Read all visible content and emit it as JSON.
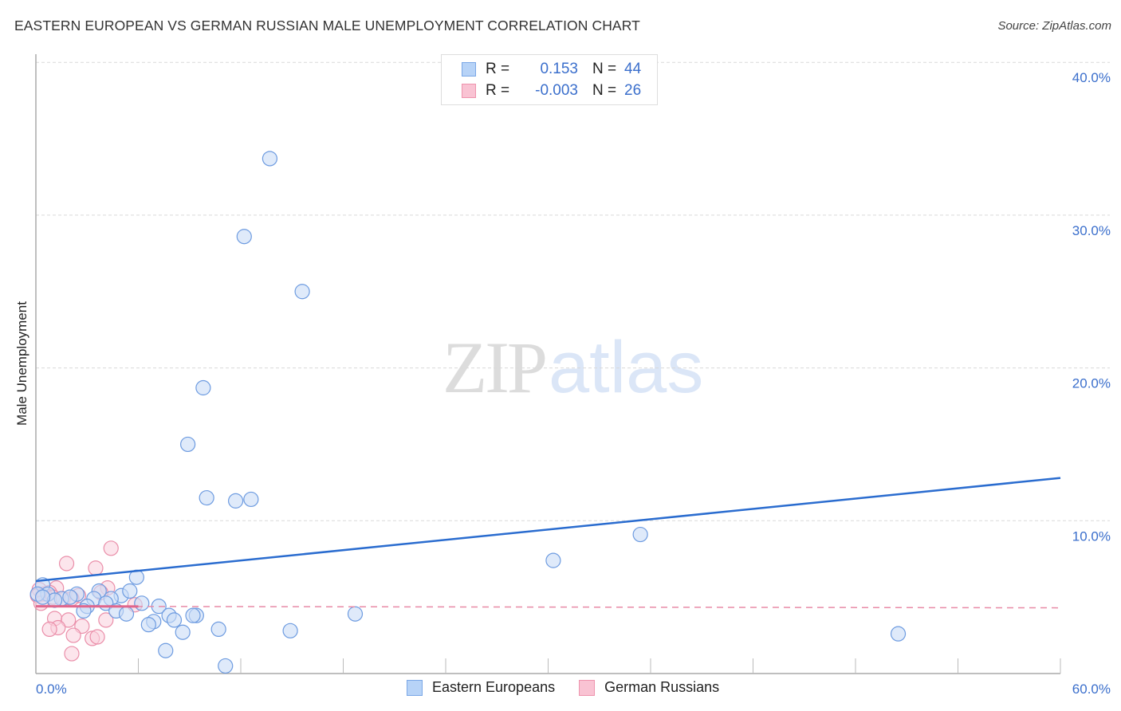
{
  "header": {
    "title": "EASTERN EUROPEAN VS GERMAN RUSSIAN MALE UNEMPLOYMENT CORRELATION CHART",
    "source": "Source: ZipAtlas.com"
  },
  "watermark": {
    "zip": "ZIP",
    "atlas": "atlas"
  },
  "legend": {
    "rows": [
      {
        "r_label": "R =",
        "r_value": "0.153",
        "n_label": "N =",
        "n_value": "44",
        "color": "#b7d3f7",
        "border": "#7aa7e6"
      },
      {
        "r_label": "R =",
        "r_value": "-0.003",
        "n_label": "N =",
        "n_value": "26",
        "color": "#f9c3d3",
        "border": "#ee93ad"
      }
    ]
  },
  "bottom_legend": {
    "items": [
      {
        "label": "Eastern Europeans",
        "color": "#b7d3f7",
        "border": "#7aa7e6"
      },
      {
        "label": "German Russians",
        "color": "#f9c3d3",
        "border": "#ee93ad"
      }
    ]
  },
  "colors": {
    "blue_fill": "#c9dcf6",
    "blue_stroke": "#6d9be0",
    "blue_line": "#2a6ccf",
    "pink_fill": "#f9cfdc",
    "pink_stroke": "#ea8ea9",
    "pink_line": "#e88aa6",
    "tick_text": "#3b6fcc"
  },
  "chart_data": {
    "type": "scatter",
    "title": "EASTERN EUROPEAN VS GERMAN RUSSIAN MALE UNEMPLOYMENT CORRELATION CHART",
    "xlabel": "",
    "ylabel": "Male Unemployment",
    "xlim": [
      0,
      60
    ],
    "ylim": [
      0,
      42
    ],
    "x_tick_labels": [
      "0.0%",
      "60.0%"
    ],
    "y_ticks": [
      10,
      20,
      30,
      40
    ],
    "y_tick_labels": [
      "10.0%",
      "20.0%",
      "30.0%",
      "40.0%"
    ],
    "grid": "horizontal dashed",
    "legend_position": "top-center and bottom",
    "series": [
      {
        "name": "Eastern Europeans",
        "R": 0.153,
        "N": 44,
        "trend": {
          "x": [
            0,
            60
          ],
          "y": [
            6.05,
            12.8
          ]
        },
        "points": [
          [
            13.7,
            33.7
          ],
          [
            12.2,
            28.6
          ],
          [
            15.6,
            25.0
          ],
          [
            9.8,
            18.7
          ],
          [
            8.9,
            15.0
          ],
          [
            10.0,
            11.5
          ],
          [
            11.7,
            11.3
          ],
          [
            12.6,
            11.4
          ],
          [
            35.4,
            9.1
          ],
          [
            30.3,
            7.4
          ],
          [
            5.9,
            6.3
          ],
          [
            0.4,
            5.8
          ],
          [
            5.0,
            5.1
          ],
          [
            5.5,
            5.4
          ],
          [
            3.7,
            5.4
          ],
          [
            2.4,
            5.2
          ],
          [
            0.7,
            5.2
          ],
          [
            4.4,
            4.9
          ],
          [
            3.4,
            4.9
          ],
          [
            1.5,
            4.9
          ],
          [
            1.1,
            4.8
          ],
          [
            3.0,
            4.4
          ],
          [
            4.1,
            4.6
          ],
          [
            6.2,
            4.6
          ],
          [
            7.2,
            4.4
          ],
          [
            4.7,
            4.1
          ],
          [
            2.8,
            4.1
          ],
          [
            5.3,
            3.9
          ],
          [
            7.8,
            3.8
          ],
          [
            9.4,
            3.8
          ],
          [
            9.2,
            3.8
          ],
          [
            18.7,
            3.9
          ],
          [
            8.1,
            3.5
          ],
          [
            6.9,
            3.4
          ],
          [
            6.6,
            3.2
          ],
          [
            8.6,
            2.7
          ],
          [
            10.7,
            2.9
          ],
          [
            14.9,
            2.8
          ],
          [
            50.5,
            2.6
          ],
          [
            7.6,
            1.5
          ],
          [
            11.1,
            0.5
          ],
          [
            0.1,
            5.2
          ],
          [
            0.4,
            5.0
          ],
          [
            2.0,
            5.0
          ]
        ]
      },
      {
        "name": "German Russians",
        "R": -0.003,
        "N": 26,
        "trend": {
          "x": [
            0,
            60
          ],
          "y": [
            4.4,
            4.3
          ]
        },
        "points": [
          [
            4.4,
            8.2
          ],
          [
            1.8,
            7.2
          ],
          [
            3.5,
            6.9
          ],
          [
            4.2,
            5.6
          ],
          [
            1.2,
            5.6
          ],
          [
            0.2,
            5.5
          ],
          [
            0.8,
            5.3
          ],
          [
            0.5,
            5.2
          ],
          [
            0.1,
            5.1
          ],
          [
            2.5,
            5.1
          ],
          [
            1.0,
            5.0
          ],
          [
            1.6,
            4.9
          ],
          [
            2.1,
            4.9
          ],
          [
            3.8,
            5.3
          ],
          [
            5.8,
            4.5
          ],
          [
            0.3,
            4.6
          ],
          [
            1.1,
            3.6
          ],
          [
            1.9,
            3.5
          ],
          [
            4.1,
            3.5
          ],
          [
            1.3,
            3.0
          ],
          [
            2.7,
            3.1
          ],
          [
            0.8,
            2.9
          ],
          [
            2.2,
            2.5
          ],
          [
            3.3,
            2.3
          ],
          [
            3.6,
            2.4
          ],
          [
            2.1,
            1.3
          ]
        ]
      }
    ]
  }
}
